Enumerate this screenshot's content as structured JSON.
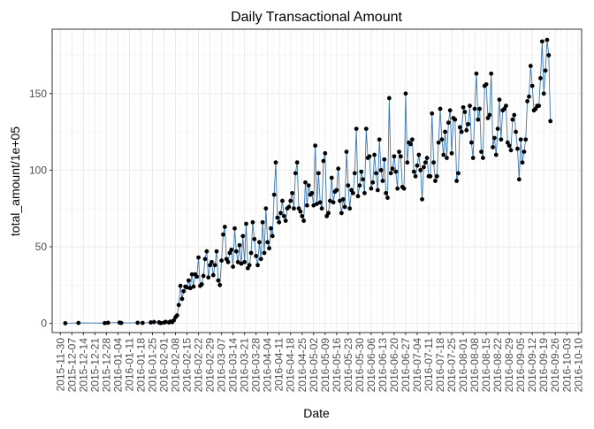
{
  "chart_data": {
    "type": "line",
    "title": "Daily Transactional Amount",
    "xlabel": "Date",
    "ylabel": "total_amount/1e+05",
    "xlim": [
      "2015-11-25",
      "2016-10-12"
    ],
    "ylim": [
      -6,
      192
    ],
    "x_ticks": [
      "2015-11-30",
      "2015-12-07",
      "2015-12-14",
      "2015-12-21",
      "2015-12-28",
      "2016-01-04",
      "2016-01-11",
      "2016-01-18",
      "2016-01-25",
      "2016-02-01",
      "2016-02-08",
      "2016-02-15",
      "2016-02-22",
      "2016-02-29",
      "2016-03-07",
      "2016-03-14",
      "2016-03-21",
      "2016-03-28",
      "2016-04-04",
      "2016-04-11",
      "2016-04-18",
      "2016-04-25",
      "2016-05-02",
      "2016-05-09",
      "2016-05-16",
      "2016-05-23",
      "2016-05-30",
      "2016-06-06",
      "2016-06-13",
      "2016-06-20",
      "2016-06-27",
      "2016-07-04",
      "2016-07-11",
      "2016-07-18",
      "2016-07-25",
      "2016-08-01",
      "2016-08-08",
      "2016-08-15",
      "2016-08-22",
      "2016-08-29",
      "2016-09-05",
      "2016-09-12",
      "2016-09-19",
      "2016-09-26",
      "2016-10-03",
      "2016-10-10"
    ],
    "y_ticks": [
      0,
      50,
      100,
      150
    ],
    "grid": true,
    "line_color": "#3b78b3",
    "point_color": "#000000",
    "series": [
      {
        "x_start": "2015-12-03",
        "values": [
          0.1,
          null,
          null,
          null,
          null,
          null,
          null,
          null,
          0.3,
          null,
          null,
          null,
          null,
          null,
          null,
          null,
          null,
          null,
          null,
          null,
          null,
          null,
          null,
          null,
          0.2,
          null,
          0.4,
          null,
          null,
          null,
          null,
          null,
          null,
          0.5,
          0.3,
          null,
          null,
          null,
          null,
          null,
          null,
          null,
          null,
          null,
          0.4,
          null,
          null,
          0.3,
          null,
          null,
          null,
          null,
          0.6,
          null,
          0.9,
          null,
          null,
          0.7,
          0.2,
          null,
          0.5,
          1.0,
          null,
          0.6,
          1.2,
          0.8,
          2.0,
          4.0,
          5.2,
          12.0,
          24.5,
          16.0,
          21.0,
          24.0,
          23.5,
          28.0,
          23.0,
          32.0,
          24.0,
          32.0,
          30.5,
          43.0,
          24.5,
          25.5,
          31.0,
          42.0,
          47.0,
          30.0,
          38.0,
          40.0,
          31.5,
          38.0,
          47.0,
          28.0,
          25.0,
          41.0,
          58.0,
          63.0,
          42.0,
          40.0,
          46.0,
          48.0,
          37.0,
          62.0,
          47.0,
          40.0,
          51.0,
          39.0,
          57.0,
          40.0,
          65.0,
          36.0,
          38.0,
          46.0,
          66.0,
          55.0,
          44.0,
          38.0,
          53.0,
          42.0,
          66.0,
          46.0,
          75.0,
          53.0,
          49.0,
          62.0,
          57.0,
          84.0,
          105.0,
          69.0,
          66.0,
          72.0,
          80.0,
          70.0,
          67.0,
          75.0,
          76.0,
          80.0,
          85.0,
          75.0,
          98.0,
          105.0,
          75.0,
          73.0,
          70.0,
          67.0,
          92.0,
          77.0,
          90.0,
          84.0,
          85.0,
          77.0,
          116.0,
          78.0,
          98.0,
          79.0,
          75.0,
          106.0,
          111.0,
          70.0,
          72.0,
          80.0,
          95.0,
          79.0,
          86.0,
          87.0,
          101.0,
          80.0,
          72.0,
          81.0,
          76.0,
          112.0,
          90.0,
          75.0,
          87.0,
          85.0,
          98.0,
          127.0,
          83.0,
          90.0,
          99.0,
          94.0,
          85.0,
          127.0,
          108.0,
          109.0,
          88.0,
          92.0,
          110.0,
          98.0,
          87.0,
          120.0,
          100.0,
          93.0,
          107.0,
          85.0,
          82.0,
          147.0,
          98.0,
          101.0,
          109.0,
          99.0,
          88.0,
          112.0,
          109.0,
          89.0,
          88.0,
          150.0,
          105.0,
          118.0,
          117.0,
          120.0,
          99.0,
          96.0,
          103.0,
          110.0,
          100.0,
          81.0,
          102.0,
          105.0,
          108.0,
          96.0,
          96.0,
          137.0,
          105.0,
          93.0,
          96.0,
          118.0,
          140.0,
          120.0,
          110.0,
          125.0,
          108.0,
          131.0,
          139.0,
          111.0,
          134.0,
          133.0,
          93.0,
          98.0,
          128.0,
          125.0,
          141.0,
          138.0,
          126.0,
          130.0,
          142.0,
          118.0,
          108.0,
          140.0,
          163.0,
          133.0,
          140.0,
          112.0,
          108.0,
          155.0,
          156.0,
          134.0,
          136.0,
          163.0,
          115.0,
          121.0,
          110.0,
          127.0,
          146.0,
          120.0,
          139.0,
          140.0,
          142.0,
          118.0,
          116.0,
          113.0,
          133.0,
          136.0,
          125.0,
          114.0,
          94.0,
          120.0,
          105.0,
          112.0,
          120.0,
          145.0,
          148.0,
          168.0,
          155.0,
          139.0,
          140.0,
          142.0,
          142.0,
          160.0,
          184.0,
          150.0,
          165.0,
          185.0,
          175.0,
          132.0
        ]
      }
    ]
  }
}
